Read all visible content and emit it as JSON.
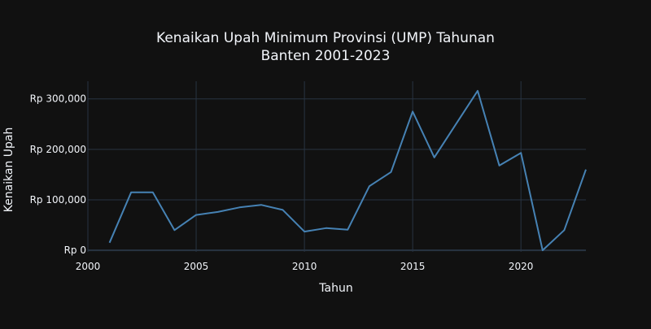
{
  "chart_data": {
    "type": "line",
    "title": "Kenaikan Upah Minimum Provinsi (UMP) Tahunan",
    "subtitle": "Banten 2001-2023",
    "xlabel": "Tahun",
    "ylabel": "Kenaikan Upah",
    "xlim": [
      2000,
      2023
    ],
    "ylim": [
      -3000,
      335000
    ],
    "x_ticks": [
      2000,
      2005,
      2010,
      2015,
      2020
    ],
    "y_ticks": [
      0,
      100000,
      200000,
      300000
    ],
    "y_tick_labels": [
      "Rp 0",
      "Rp 100,000",
      "Rp 200,000",
      "Rp 300,000"
    ],
    "grid": true,
    "colors": {
      "background": "#111111",
      "grid": "#283442",
      "text": "#f2f5fa",
      "line": "#4682b4"
    },
    "series": [
      {
        "x": [
          2001,
          2002,
          2003,
          2004,
          2005,
          2006,
          2007,
          2008,
          2009,
          2010,
          2011,
          2012,
          2013,
          2014,
          2015,
          2016,
          2017,
          2018,
          2019,
          2020,
          2021,
          2022,
          2023
        ],
        "values": [
          15000,
          115000,
          115000,
          40000,
          70000,
          76000,
          85000,
          90000,
          80000,
          37000,
          44000,
          41000,
          127000,
          155000,
          275000,
          184000,
          250000,
          316000,
          168000,
          193000,
          0,
          40000,
          160000
        ]
      }
    ]
  }
}
